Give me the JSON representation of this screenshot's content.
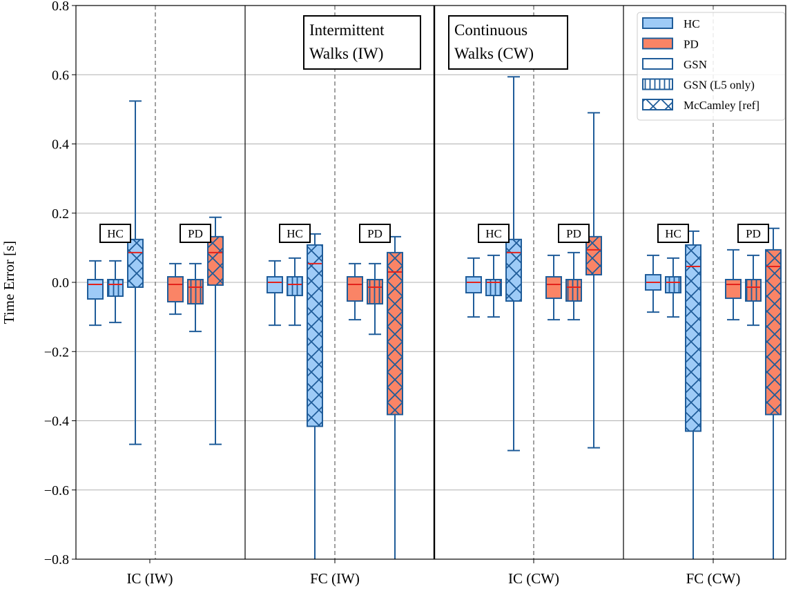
{
  "chart_data": {
    "type": "box",
    "ylabel": "Time Error [s]",
    "xlabel": "",
    "ylim": [
      -0.8,
      0.8
    ],
    "yticks": [
      -0.8,
      -0.6,
      -0.4,
      -0.2,
      0.0,
      0.2,
      0.4,
      0.6,
      0.8
    ],
    "ytick_labels": [
      "−0.8",
      "−0.6",
      "−0.4",
      "−0.2",
      "0.0",
      "0.2",
      "0.4",
      "0.6",
      "0.8"
    ],
    "grid": "horizontal",
    "legend_position": "top-right",
    "legend": [
      {
        "label": "HC",
        "fill": "#9ecbf7",
        "hatch": "none"
      },
      {
        "label": "PD",
        "fill": "#fa8466",
        "hatch": "none"
      },
      {
        "label": "GSN",
        "fill": "#ffffff",
        "hatch": "none"
      },
      {
        "label": "GSN (L5 only)",
        "fill": "#ffffff",
        "hatch": "vertical"
      },
      {
        "label": "McCamley [ref]",
        "fill": "#ffffff",
        "hatch": "cross"
      }
    ],
    "colors": {
      "HC": "#9ecbf7",
      "PD": "#fa8466",
      "edge": "#1f5c99",
      "median": "#e3221c",
      "grid": "#b0b0b0"
    },
    "panel_titles": [
      [
        "Intermittent",
        "Walks (IW)"
      ],
      [
        "Continuous",
        "Walks (CW)"
      ]
    ],
    "group_labels": [
      "HC",
      "PD"
    ],
    "categories": [
      "IC (IW)",
      "FC (IW)",
      "IC (CW)",
      "FC (CW)"
    ],
    "groups": [
      {
        "category": "IC (IW)",
        "cohorts": [
          {
            "cohort": "HC",
            "boxes": [
              {
                "method": "GSN",
                "whislo": -0.124,
                "q1": -0.048,
                "median": -0.006,
                "q3": 0.008,
                "whishi": 0.062
              },
              {
                "method": "GSN (L5 only)",
                "whislo": -0.116,
                "q1": -0.04,
                "median": -0.006,
                "q3": 0.008,
                "whishi": 0.062
              },
              {
                "method": "McCamley [ref]",
                "whislo": -0.468,
                "q1": -0.014,
                "median": 0.086,
                "q3": 0.124,
                "whishi": 0.524
              }
            ]
          },
          {
            "cohort": "PD",
            "boxes": [
              {
                "method": "GSN",
                "whislo": -0.092,
                "q1": -0.056,
                "median": -0.006,
                "q3": 0.016,
                "whishi": 0.054
              },
              {
                "method": "GSN (L5 only)",
                "whislo": -0.142,
                "q1": -0.062,
                "median": -0.014,
                "q3": 0.008,
                "whishi": 0.054
              },
              {
                "method": "McCamley [ref]",
                "whislo": -0.468,
                "q1": -0.008,
                "median": 0.086,
                "q3": 0.132,
                "whishi": 0.188
              }
            ]
          }
        ]
      },
      {
        "category": "FC (IW)",
        "cohorts": [
          {
            "cohort": "HC",
            "boxes": [
              {
                "method": "GSN",
                "whislo": -0.124,
                "q1": -0.03,
                "median": 0.0,
                "q3": 0.016,
                "whishi": 0.062
              },
              {
                "method": "GSN (L5 only)",
                "whislo": -0.124,
                "q1": -0.038,
                "median": -0.006,
                "q3": 0.016,
                "whishi": 0.07
              },
              {
                "method": "McCamley [ref]",
                "whislo": -0.8,
                "q1": -0.416,
                "median": 0.054,
                "q3": 0.108,
                "whishi": 0.14
              }
            ]
          },
          {
            "cohort": "PD",
            "boxes": [
              {
                "method": "GSN",
                "whislo": -0.108,
                "q1": -0.054,
                "median": -0.006,
                "q3": 0.016,
                "whishi": 0.054
              },
              {
                "method": "GSN (L5 only)",
                "whislo": -0.15,
                "q1": -0.062,
                "median": -0.014,
                "q3": 0.008,
                "whishi": 0.054
              },
              {
                "method": "McCamley [ref]",
                "whislo": -0.8,
                "q1": -0.382,
                "median": 0.03,
                "q3": 0.086,
                "whishi": 0.132
              }
            ]
          }
        ]
      },
      {
        "category": "IC (CW)",
        "cohorts": [
          {
            "cohort": "HC",
            "boxes": [
              {
                "method": "GSN",
                "whislo": -0.1,
                "q1": -0.03,
                "median": 0.0,
                "q3": 0.016,
                "whishi": 0.07
              },
              {
                "method": "GSN (L5 only)",
                "whislo": -0.1,
                "q1": -0.038,
                "median": 0.0,
                "q3": 0.008,
                "whishi": 0.078
              },
              {
                "method": "McCamley [ref]",
                "whislo": -0.486,
                "q1": -0.054,
                "median": 0.086,
                "q3": 0.124,
                "whishi": 0.594
              }
            ]
          },
          {
            "cohort": "PD",
            "boxes": [
              {
                "method": "GSN",
                "whislo": -0.108,
                "q1": -0.046,
                "median": -0.006,
                "q3": 0.016,
                "whishi": 0.078
              },
              {
                "method": "GSN (L5 only)",
                "whislo": -0.108,
                "q1": -0.054,
                "median": -0.014,
                "q3": 0.008,
                "whishi": 0.086
              },
              {
                "method": "McCamley [ref]",
                "whislo": -0.478,
                "q1": 0.022,
                "median": 0.094,
                "q3": 0.132,
                "whishi": 0.49
              }
            ]
          }
        ]
      },
      {
        "category": "FC (CW)",
        "cohorts": [
          {
            "cohort": "HC",
            "boxes": [
              {
                "method": "GSN",
                "whislo": -0.086,
                "q1": -0.022,
                "median": 0.0,
                "q3": 0.022,
                "whishi": 0.078
              },
              {
                "method": "GSN (L5 only)",
                "whislo": -0.1,
                "q1": -0.03,
                "median": 0.0,
                "q3": 0.016,
                "whishi": 0.07
              },
              {
                "method": "McCamley [ref]",
                "whislo": -0.8,
                "q1": -0.43,
                "median": 0.046,
                "q3": 0.108,
                "whishi": 0.148
              }
            ]
          },
          {
            "cohort": "PD",
            "boxes": [
              {
                "method": "GSN",
                "whislo": -0.108,
                "q1": -0.046,
                "median": -0.006,
                "q3": 0.008,
                "whishi": 0.094
              },
              {
                "method": "GSN (L5 only)",
                "whislo": -0.124,
                "q1": -0.054,
                "median": -0.014,
                "q3": 0.008,
                "whishi": 0.078
              },
              {
                "method": "McCamley [ref]",
                "whislo": -0.8,
                "q1": -0.382,
                "median": 0.046,
                "q3": 0.094,
                "whishi": 0.156
              }
            ]
          }
        ]
      }
    ]
  }
}
